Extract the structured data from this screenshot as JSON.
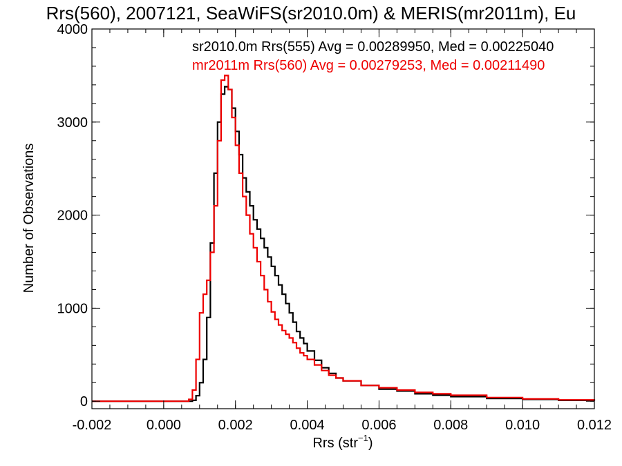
{
  "chart_data": {
    "type": "line",
    "title": "Rrs(560), 2007121, SeaWiFS(sr2010.0m) & MERIS(mr2011m), Eu",
    "xlabel": "Rrs (str",
    "xlabel_sup": "−1",
    "xlabel_close": ")",
    "ylabel": "Number of Observations",
    "xlim": [
      -0.002,
      0.012
    ],
    "ylim": [
      -80,
      4000
    ],
    "xticks": [
      -0.002,
      0.0,
      0.002,
      0.004,
      0.006,
      0.008,
      0.01,
      0.012
    ],
    "xtick_labels": [
      "-0.002",
      "0.000",
      "0.002",
      "0.004",
      "0.006",
      "0.008",
      "0.010",
      "0.012"
    ],
    "yticks": [
      0,
      1000,
      2000,
      3000,
      4000
    ],
    "ytick_labels": [
      "0",
      "1000",
      "2000",
      "3000",
      "4000"
    ],
    "legend_placement": "top",
    "series": [
      {
        "name": "sr2010.0m Rrs(555) Avg = 0.00289950, Med = 0.00225040",
        "color": "#000000",
        "x": [
          -0.002,
          0.0007,
          0.0008,
          0.0009,
          0.001,
          0.0011,
          0.0012,
          0.0013,
          0.0014,
          0.0015,
          0.0016,
          0.0017,
          0.0018,
          0.0019,
          0.002,
          0.0021,
          0.0022,
          0.0023,
          0.0024,
          0.0025,
          0.0026,
          0.0027,
          0.0028,
          0.0029,
          0.003,
          0.0031,
          0.0032,
          0.0033,
          0.0034,
          0.0035,
          0.0036,
          0.0037,
          0.0038,
          0.0039,
          0.004,
          0.0042,
          0.0044,
          0.0046,
          0.0048,
          0.005,
          0.0055,
          0.006,
          0.0065,
          0.007,
          0.0075,
          0.008,
          0.009,
          0.01,
          0.011,
          0.012
        ],
        "y": [
          0,
          0,
          10,
          60,
          200,
          450,
          900,
          1700,
          2450,
          3000,
          3300,
          3380,
          3350,
          3150,
          2900,
          2650,
          2400,
          2250,
          2100,
          1950,
          1850,
          1750,
          1650,
          1550,
          1450,
          1350,
          1250,
          1150,
          1050,
          950,
          850,
          750,
          680,
          620,
          540,
          440,
          360,
          300,
          250,
          220,
          170,
          130,
          110,
          80,
          65,
          50,
          30,
          20,
          10,
          5
        ]
      },
      {
        "name": "mr2011m Rrs(560) Avg = 0.00279253, Med = 0.00211490",
        "color": "#ee0000",
        "x": [
          -0.002,
          0.0006,
          0.0007,
          0.0008,
          0.0009,
          0.001,
          0.0011,
          0.0012,
          0.0013,
          0.0014,
          0.0015,
          0.0016,
          0.0017,
          0.0018,
          0.0019,
          0.002,
          0.0021,
          0.0022,
          0.0023,
          0.0024,
          0.0025,
          0.0026,
          0.0027,
          0.0028,
          0.0029,
          0.003,
          0.0031,
          0.0032,
          0.0033,
          0.0034,
          0.0035,
          0.0036,
          0.0037,
          0.0038,
          0.0039,
          0.004,
          0.0042,
          0.0044,
          0.0046,
          0.0048,
          0.005,
          0.0055,
          0.006,
          0.0065,
          0.007,
          0.0075,
          0.008,
          0.009,
          0.01,
          0.011,
          0.012
        ],
        "y": [
          0,
          0,
          20,
          120,
          450,
          950,
          1150,
          1300,
          1600,
          2100,
          2800,
          3450,
          3500,
          3350,
          3050,
          2750,
          2450,
          2200,
          2000,
          1800,
          1650,
          1500,
          1350,
          1200,
          1070,
          960,
          880,
          820,
          760,
          720,
          680,
          630,
          570,
          520,
          490,
          450,
          390,
          330,
          280,
          250,
          220,
          170,
          145,
          120,
          95,
          80,
          65,
          40,
          25,
          15,
          8
        ]
      }
    ]
  }
}
